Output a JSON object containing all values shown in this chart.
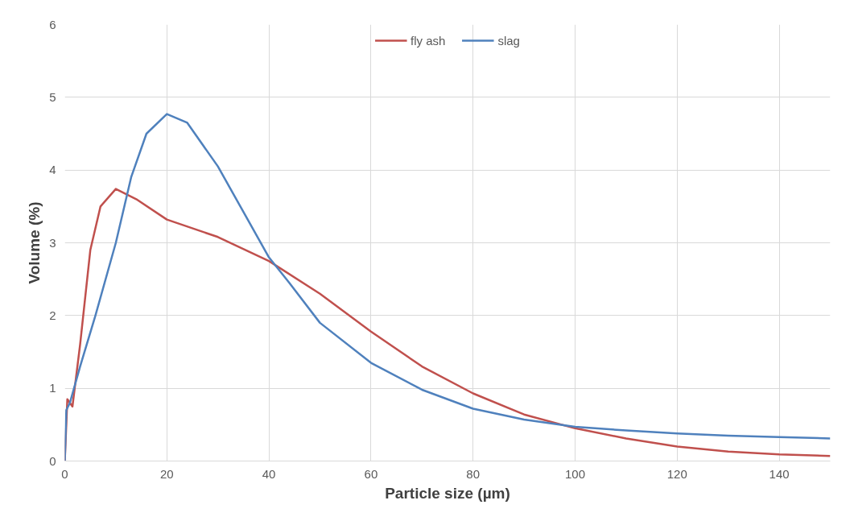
{
  "chart_data": {
    "type": "line",
    "xlabel": "Particle size (µm)",
    "ylabel": "Volume (%)",
    "xlim": [
      0,
      150
    ],
    "ylim": [
      0,
      6
    ],
    "xticks": [
      0,
      20,
      40,
      60,
      80,
      100,
      120,
      140
    ],
    "yticks": [
      0,
      1,
      2,
      3,
      4,
      5,
      6
    ],
    "grid": true,
    "legend": "top",
    "marker": "none",
    "line_style": "solid",
    "series": [
      {
        "name": "fly ash",
        "color": "#c0504d",
        "x": [
          0,
          0.5,
          1.5,
          3,
          5,
          7,
          10,
          14,
          20,
          30,
          40,
          50,
          60,
          70,
          80,
          90,
          100,
          110,
          120,
          130,
          140,
          150
        ],
        "values": [
          0,
          0.85,
          0.75,
          1.6,
          2.9,
          3.5,
          3.74,
          3.6,
          3.32,
          3.08,
          2.75,
          2.3,
          1.78,
          1.3,
          0.93,
          0.64,
          0.45,
          0.31,
          0.2,
          0.13,
          0.09,
          0.07
        ]
      },
      {
        "name": "slag",
        "color": "#4f81bd",
        "x": [
          0,
          0.3,
          1,
          3,
          6,
          10,
          13,
          16,
          20,
          24,
          30,
          36,
          40,
          44,
          50,
          60,
          70,
          80,
          90,
          100,
          110,
          120,
          130,
          140,
          150
        ],
        "values": [
          0,
          0.7,
          0.8,
          1.3,
          2.0,
          3.0,
          3.9,
          4.5,
          4.77,
          4.65,
          4.05,
          3.3,
          2.8,
          2.45,
          1.9,
          1.35,
          0.98,
          0.72,
          0.57,
          0.47,
          0.42,
          0.38,
          0.35,
          0.33,
          0.31
        ]
      }
    ]
  }
}
